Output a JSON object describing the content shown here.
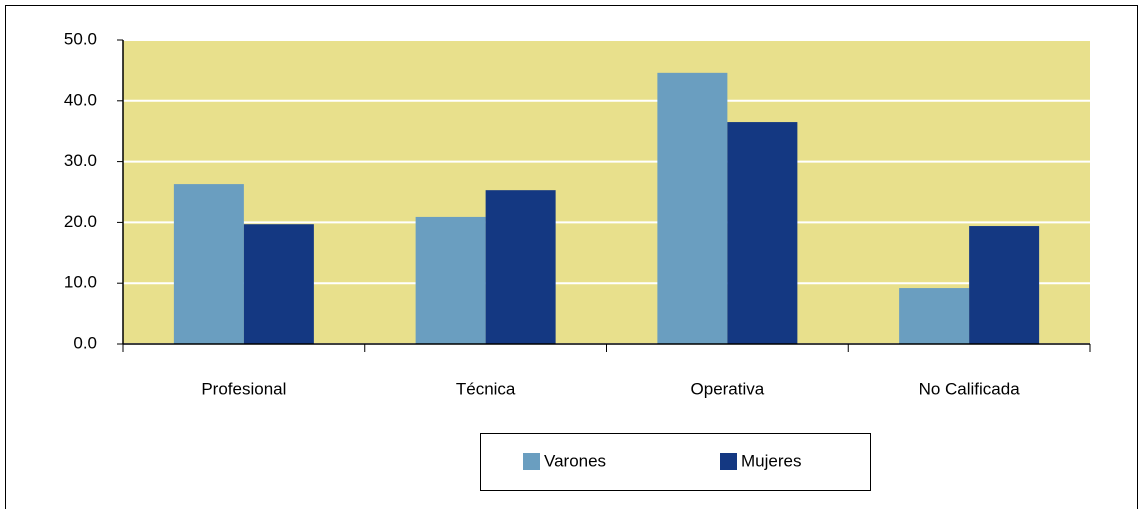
{
  "chart_data": {
    "type": "bar",
    "categories": [
      "Profesional",
      "Técnica",
      "Operativa",
      "No Calificada"
    ],
    "series": [
      {
        "name": "Varones",
        "color": "#6a9ec0",
        "values": [
          26.3,
          20.9,
          44.6,
          9.2
        ]
      },
      {
        "name": "Mujeres",
        "color": "#143882",
        "values": [
          19.7,
          25.3,
          36.5,
          19.4
        ]
      }
    ],
    "ylim": [
      0,
      50
    ],
    "yticks": [
      {
        "value": 0,
        "label": "0.0"
      },
      {
        "value": 10,
        "label": "10.0"
      },
      {
        "value": 20,
        "label": "20.0"
      },
      {
        "value": 30,
        "label": "30.0"
      },
      {
        "value": 40,
        "label": "40.0"
      },
      {
        "value": 50,
        "label": "50.0"
      }
    ],
    "grid": true,
    "legend": "bottom",
    "background": "#e8e08c"
  }
}
